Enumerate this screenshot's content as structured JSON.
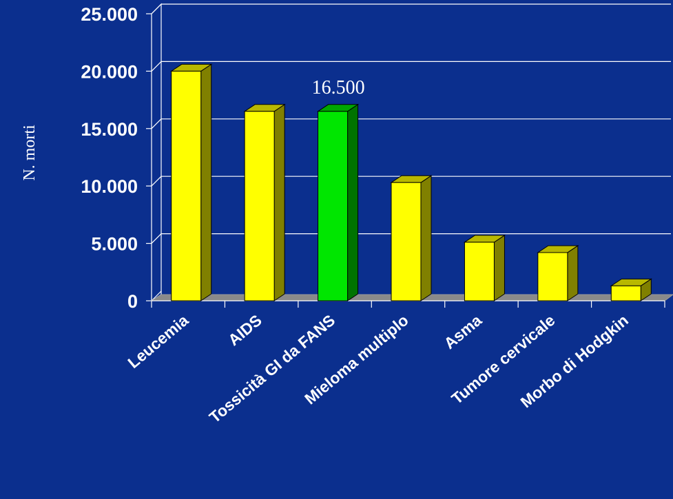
{
  "chart_data": {
    "type": "bar",
    "title": "",
    "xlabel": "",
    "ylabel": "N. morti",
    "categories": [
      "Leucemia",
      "AIDS",
      "Tossicità GI da FANS",
      "Mieloma multiplo",
      "Asma",
      "Tumore cervicale",
      "Morbo di Hodgkin"
    ],
    "values": [
      20000,
      16500,
      16500,
      10300,
      5100,
      4200,
      1300
    ],
    "highlight_index": 2,
    "ylim": [
      0,
      25000
    ],
    "yticks": [
      0,
      5000,
      10000,
      15000,
      20000,
      25000
    ],
    "ytick_labels": [
      "0",
      "5.000",
      "10.000",
      "15.000",
      "20.000",
      "25.000"
    ],
    "annotations": [
      {
        "index": 2,
        "text": "16.500"
      }
    ],
    "grid": true,
    "legend": "none",
    "colors": {
      "background": "#0b2f8e",
      "bar": "#ffff00",
      "bar_highlight": "#00e600",
      "grid": "#ffffff",
      "text": "#ffffff"
    }
  }
}
